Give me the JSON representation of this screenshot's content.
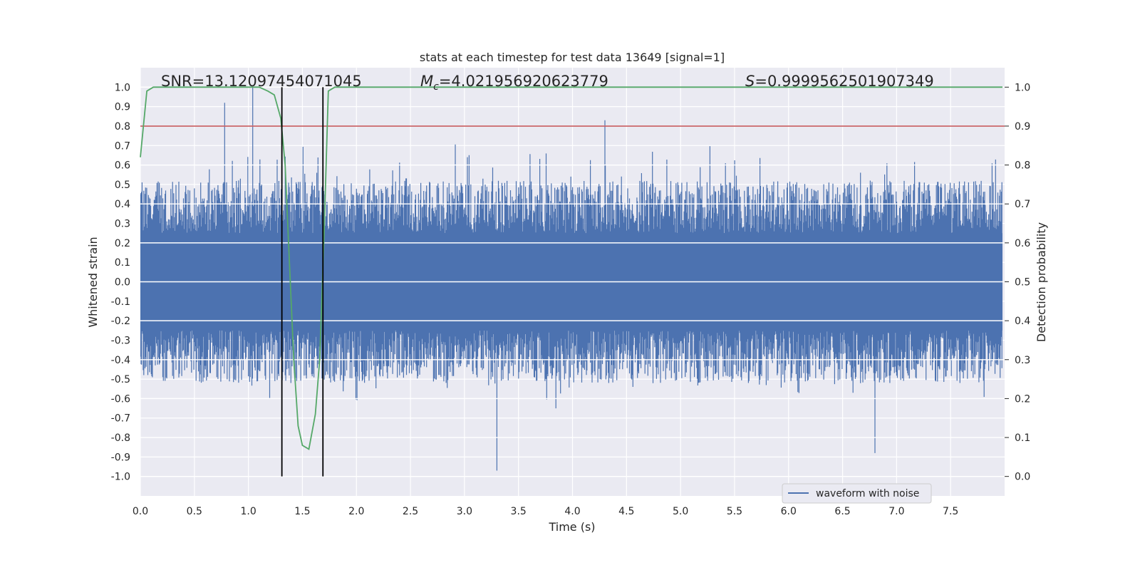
{
  "chart_data": {
    "type": "line",
    "title": "stats at each timestep for test data 13649 [signal=1]",
    "xlabel": "Time (s)",
    "ylabel": "Whitened strain",
    "y2label": "Detection probability",
    "xlim": [
      0.0,
      8.0
    ],
    "ylim": [
      -1.1,
      1.1
    ],
    "y2lim": [
      -0.05,
      1.05
    ],
    "xticks": [
      "0.0",
      "0.5",
      "1.0",
      "1.5",
      "2.0",
      "2.5",
      "3.0",
      "3.5",
      "4.0",
      "4.5",
      "5.0",
      "5.5",
      "6.0",
      "6.5",
      "7.0",
      "7.5"
    ],
    "yticks": [
      "1.0",
      "0.9",
      "0.8",
      "0.7",
      "0.6",
      "0.5",
      "0.4",
      "0.3",
      "0.2",
      "0.1",
      "0.0",
      "-0.1",
      "-0.2",
      "-0.3",
      "-0.4",
      "-0.5",
      "-0.6",
      "-0.7",
      "-0.8",
      "-0.9",
      "-1.0"
    ],
    "y2ticks": [
      "1.0",
      "0.9",
      "0.8",
      "0.7",
      "0.6",
      "0.5",
      "0.4",
      "0.3",
      "0.2",
      "0.1",
      "0.0"
    ],
    "grid": true,
    "legend_position": "lower right",
    "annotations": {
      "snr": "SNR=13.12097454071045",
      "mc_symbol": "M",
      "mc_subscript": "c",
      "mc_value": "=4.021956920623779",
      "s_symbol": "S",
      "s_value": "=0.9999562501907349"
    },
    "series": [
      {
        "name": "waveform with noise",
        "color": "#4c72b0",
        "description_of_values": "dense whitened strain noise, envelope roughly ±0.5, peaks",
        "peaks": [
          {
            "x": 0.78,
            "y": 0.92
          },
          {
            "x": 1.04,
            "y": 1.0
          },
          {
            "x": 3.3,
            "y": -0.97
          },
          {
            "x": 6.8,
            "y": -0.88
          },
          {
            "x": 4.3,
            "y": 0.83
          }
        ]
      },
      {
        "role": "detection_probability",
        "axis": "right",
        "color": "#55a868",
        "x": [
          0.0,
          0.06,
          0.12,
          0.2,
          0.4,
          0.6,
          0.8,
          1.0,
          1.1,
          1.18,
          1.24,
          1.3,
          1.34,
          1.38,
          1.42,
          1.46,
          1.5,
          1.56,
          1.62,
          1.66,
          1.7,
          1.74,
          1.8,
          2.0,
          4.0,
          6.0,
          7.98
        ],
        "y": [
          0.82,
          0.99,
          1.0,
          1.0,
          1.0,
          1.0,
          1.0,
          1.0,
          1.0,
          0.99,
          0.98,
          0.92,
          0.8,
          0.55,
          0.3,
          0.13,
          0.08,
          0.07,
          0.16,
          0.3,
          0.62,
          0.99,
          1.0,
          1.0,
          1.0,
          1.0,
          1.0
        ]
      },
      {
        "role": "threshold",
        "axis": "right",
        "color": "#c44e52",
        "y": 0.9
      }
    ],
    "vlines": [
      {
        "x": 1.31,
        "color": "#000000"
      },
      {
        "x": 1.69,
        "color": "#000000"
      }
    ]
  },
  "legend": {
    "label": "waveform with noise"
  }
}
